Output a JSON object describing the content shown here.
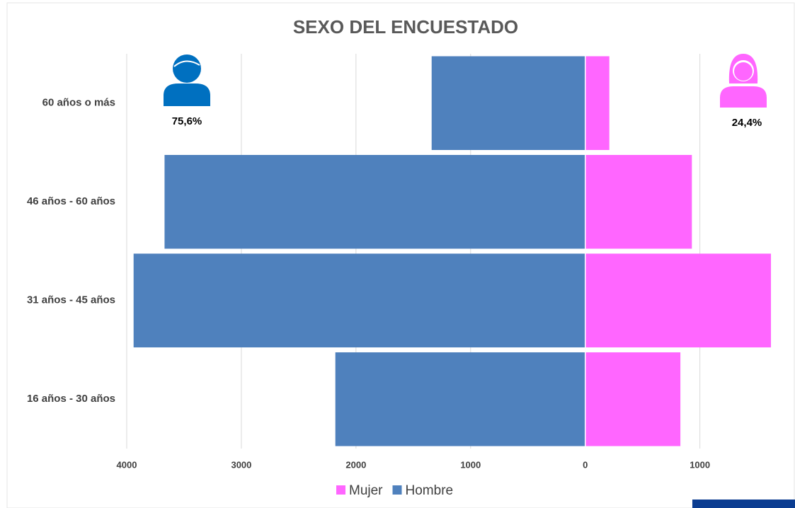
{
  "chart_data": {
    "type": "bar",
    "orientation": "horizontal",
    "title": "SEXO DEL ENCUESTADO",
    "categories": [
      "60 años o más",
      "46 años - 60 años",
      "31 años - 45 años",
      "16 años - 30 años"
    ],
    "series": [
      {
        "name": "Mujer",
        "color": "#ff66ff",
        "values": [
          210,
          930,
          1620,
          830
        ]
      },
      {
        "name": "Hombre",
        "color": "#4f81bd",
        "values": [
          -1340,
          -3670,
          -3940,
          -2180
        ]
      }
    ],
    "xlim": [
      -4000,
      1700
    ],
    "xticks": [
      {
        "value": -4000,
        "label": "4000"
      },
      {
        "value": -3000,
        "label": "3000"
      },
      {
        "value": -2000,
        "label": "2000"
      },
      {
        "value": -1000,
        "label": "1000"
      },
      0,
      1000
    ],
    "grid": true,
    "legend": "bottom",
    "annotations": [
      "75,6%",
      "24,4%"
    ]
  }
}
